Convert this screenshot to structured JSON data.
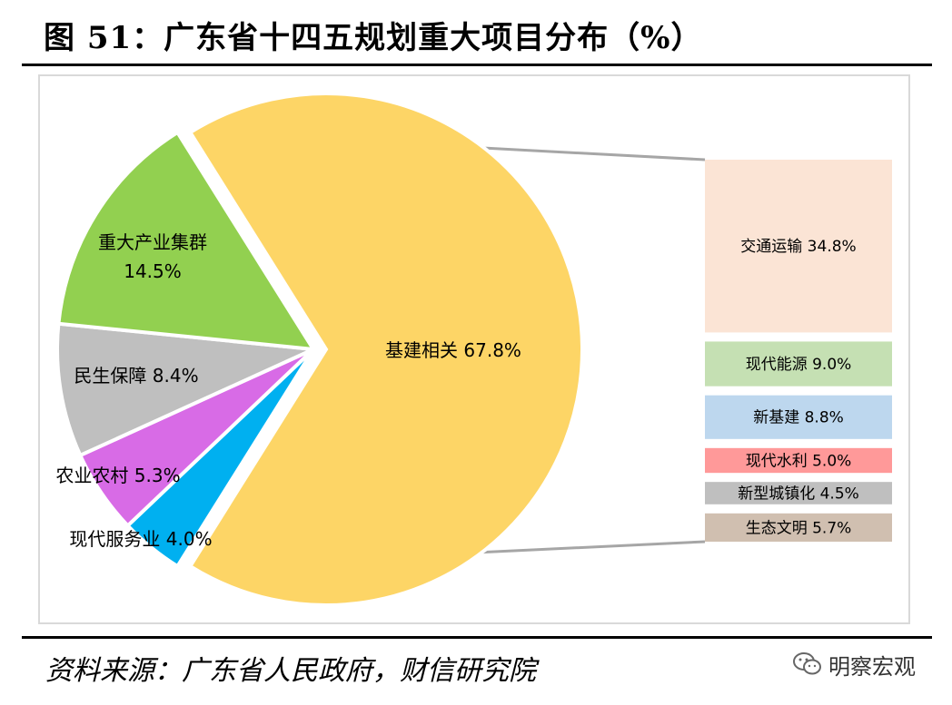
{
  "header": {
    "title": "图 51：广东省十四五规划重大项目分布（%）"
  },
  "footer": {
    "source": "资料来源：广东省人民政府，财信研究院",
    "watermark": "明察宏观"
  },
  "icons": {
    "watermark": "wechat-icon"
  },
  "chart_data": {
    "type": "bar-of-pie",
    "unit": "%",
    "pie": [
      {
        "name": "基建相关",
        "value": 67.8,
        "color": "#FDD566"
      },
      {
        "name": "现代服务业",
        "value": 4.0,
        "color": "#00B0F0"
      },
      {
        "name": "农业农村",
        "value": 5.3,
        "color": "#D86BE6"
      },
      {
        "name": "民生保障",
        "value": 8.4,
        "color": "#BFBFBF"
      },
      {
        "name": "重大产业集群",
        "value": 14.5,
        "color": "#92D050"
      }
    ],
    "breakdown_of": "基建相关",
    "bar": [
      {
        "name": "交通运输",
        "value": 34.8,
        "color": "#FBE4D5"
      },
      {
        "name": "现代能源",
        "value": 9.0,
        "color": "#C5E0B3"
      },
      {
        "name": "新基建",
        "value": 8.8,
        "color": "#BDD7EE"
      },
      {
        "name": "现代水利",
        "value": 5.0,
        "color": "#FF9999"
      },
      {
        "name": "新型城镇化",
        "value": 4.5,
        "color": "#BFBFBF"
      },
      {
        "name": "生态文明",
        "value": 5.7,
        "color": "#D0BFB0"
      }
    ]
  }
}
